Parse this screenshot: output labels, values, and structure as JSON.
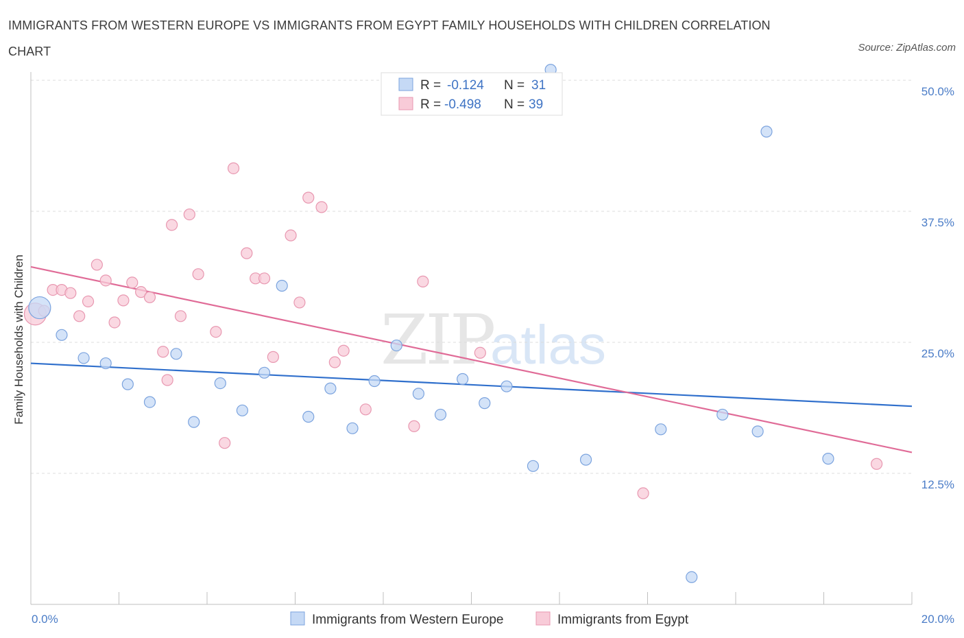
{
  "header": {
    "title": "IMMIGRANTS FROM WESTERN EUROPE VS IMMIGRANTS FROM EGYPT FAMILY HOUSEHOLDS WITH CHILDREN CORRELATION CHART",
    "source": "Source: ZipAtlas.com"
  },
  "watermark": {
    "zip": "ZIP",
    "atlas": "atlas"
  },
  "legend": {
    "r_label": "R =",
    "n_label": "N =",
    "rows": [
      {
        "r": "-0.124",
        "n": "31"
      },
      {
        "r": "-0.498",
        "n": "39"
      }
    ]
  },
  "colors": {
    "blue_fill": "#c5d9f5",
    "blue_stroke": "#7ba3de",
    "blue_line": "#2f6fcc",
    "pink_fill": "#f8cbd8",
    "pink_stroke": "#e897b0",
    "pink_line": "#e06b97"
  },
  "chart_data": {
    "type": "scatter",
    "title": "IMMIGRANTS FROM WESTERN EUROPE VS IMMIGRANTS FROM EGYPT FAMILY HOUSEHOLDS WITH CHILDREN CORRELATION CHART",
    "xlabel": "",
    "ylabel": "Family Households with Children",
    "xlim": [
      0,
      20
    ],
    "ylim": [
      0,
      50
    ],
    "x_tick_labels": [
      "0.0%",
      "20.0%"
    ],
    "y_ticks": [
      12.5,
      25.0,
      37.5,
      50.0
    ],
    "y_tick_labels": [
      "12.5%",
      "25.0%",
      "37.5%",
      "50.0%"
    ],
    "grid": true,
    "legend_position": "top-center",
    "series": [
      {
        "name": "Immigrants from Western Europe",
        "color": "#7ba3de",
        "trend": {
          "x": [
            0,
            20
          ],
          "y": [
            23.0,
            18.9
          ]
        },
        "points": [
          {
            "x": 0.2,
            "y": 28.3,
            "big": true
          },
          {
            "x": 0.7,
            "y": 25.7
          },
          {
            "x": 1.2,
            "y": 23.5
          },
          {
            "x": 1.7,
            "y": 23.0
          },
          {
            "x": 2.2,
            "y": 21.0
          },
          {
            "x": 2.7,
            "y": 19.3
          },
          {
            "x": 3.3,
            "y": 23.9
          },
          {
            "x": 3.7,
            "y": 17.4
          },
          {
            "x": 4.3,
            "y": 21.1
          },
          {
            "x": 4.8,
            "y": 18.5
          },
          {
            "x": 5.3,
            "y": 22.1
          },
          {
            "x": 5.7,
            "y": 30.4
          },
          {
            "x": 6.3,
            "y": 17.9
          },
          {
            "x": 6.8,
            "y": 20.6
          },
          {
            "x": 7.3,
            "y": 16.8
          },
          {
            "x": 7.8,
            "y": 21.3
          },
          {
            "x": 8.3,
            "y": 24.7
          },
          {
            "x": 8.8,
            "y": 20.1
          },
          {
            "x": 9.3,
            "y": 18.1
          },
          {
            "x": 9.8,
            "y": 21.5
          },
          {
            "x": 10.3,
            "y": 19.2
          },
          {
            "x": 10.8,
            "y": 20.8
          },
          {
            "x": 11.8,
            "y": 51.0
          },
          {
            "x": 11.4,
            "y": 13.2
          },
          {
            "x": 12.6,
            "y": 13.8
          },
          {
            "x": 14.3,
            "y": 16.7
          },
          {
            "x": 15.0,
            "y": 2.6
          },
          {
            "x": 15.7,
            "y": 18.1
          },
          {
            "x": 16.5,
            "y": 16.5
          },
          {
            "x": 16.7,
            "y": 45.1
          },
          {
            "x": 18.1,
            "y": 13.9
          }
        ]
      },
      {
        "name": "Immigrants from Egypt",
        "color": "#e897b0",
        "trend": {
          "x": [
            0,
            20
          ],
          "y": [
            32.2,
            14.5
          ]
        },
        "points": [
          {
            "x": 0.1,
            "y": 27.7,
            "big": true
          },
          {
            "x": 0.3,
            "y": 28.0
          },
          {
            "x": 0.5,
            "y": 30.0
          },
          {
            "x": 0.7,
            "y": 30.0
          },
          {
            "x": 0.9,
            "y": 29.7
          },
          {
            "x": 1.1,
            "y": 27.5
          },
          {
            "x": 1.3,
            "y": 28.9
          },
          {
            "x": 1.5,
            "y": 32.4
          },
          {
            "x": 1.7,
            "y": 30.9
          },
          {
            "x": 1.9,
            "y": 26.9
          },
          {
            "x": 2.1,
            "y": 29.0
          },
          {
            "x": 2.3,
            "y": 30.7
          },
          {
            "x": 2.5,
            "y": 29.8
          },
          {
            "x": 2.7,
            "y": 29.3
          },
          {
            "x": 3.0,
            "y": 24.1
          },
          {
            "x": 3.1,
            "y": 21.4
          },
          {
            "x": 3.2,
            "y": 36.2
          },
          {
            "x": 3.4,
            "y": 27.5
          },
          {
            "x": 3.6,
            "y": 37.2
          },
          {
            "x": 3.8,
            "y": 31.5
          },
          {
            "x": 4.2,
            "y": 26.0
          },
          {
            "x": 4.4,
            "y": 15.4
          },
          {
            "x": 4.6,
            "y": 41.6
          },
          {
            "x": 4.9,
            "y": 33.5
          },
          {
            "x": 5.1,
            "y": 31.1
          },
          {
            "x": 5.3,
            "y": 31.1
          },
          {
            "x": 5.5,
            "y": 23.6
          },
          {
            "x": 5.9,
            "y": 35.2
          },
          {
            "x": 6.1,
            "y": 28.8
          },
          {
            "x": 6.3,
            "y": 38.8
          },
          {
            "x": 6.6,
            "y": 37.9
          },
          {
            "x": 6.9,
            "y": 23.1
          },
          {
            "x": 7.1,
            "y": 24.2
          },
          {
            "x": 7.6,
            "y": 18.6
          },
          {
            "x": 8.7,
            "y": 17.0
          },
          {
            "x": 8.9,
            "y": 30.8
          },
          {
            "x": 10.2,
            "y": 24.0
          },
          {
            "x": 13.9,
            "y": 10.6
          },
          {
            "x": 19.2,
            "y": 13.4
          }
        ]
      }
    ]
  }
}
